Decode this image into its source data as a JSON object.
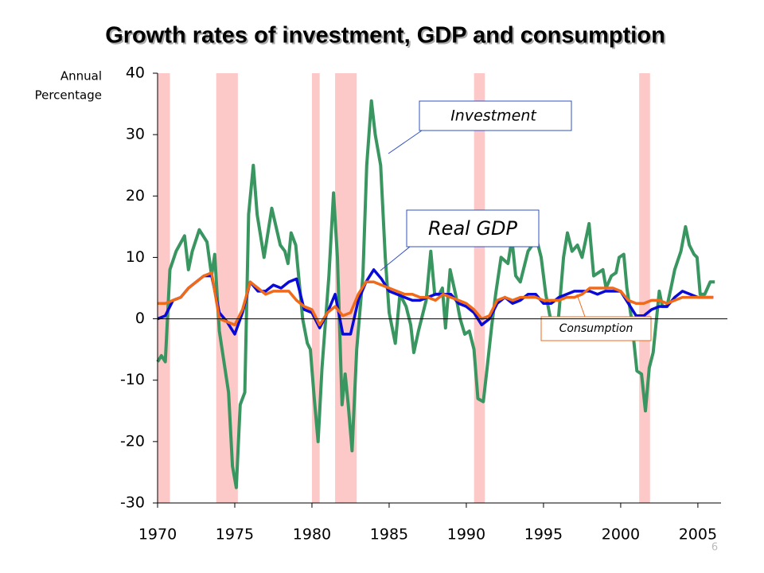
{
  "chart_data": {
    "type": "line",
    "title": "Growth rates of investment, GDP and consumption",
    "y_label": [
      "Annual",
      "Percentage"
    ],
    "xlim": [
      1970,
      2006.5
    ],
    "xticks": [
      1970,
      1975,
      1980,
      1985,
      1990,
      1995,
      2000,
      2005
    ],
    "ylim": [
      -30,
      40
    ],
    "yticks": [
      -30,
      -20,
      -10,
      0,
      10,
      20,
      30,
      40
    ],
    "shaded_periods": [
      [
        1969.9,
        1970.8
      ],
      [
        1973.8,
        1975.2
      ],
      [
        1980.0,
        1980.5
      ],
      [
        1981.5,
        1982.9
      ],
      [
        1990.5,
        1991.2
      ],
      [
        2001.2,
        2001.9
      ]
    ],
    "shade_color": "#fcc8c8",
    "series": [
      {
        "name": "Investment",
        "color": "#3a9660",
        "x": [
          1970,
          1970.25,
          1970.5,
          1970.8,
          1971.2,
          1971.75,
          1972,
          1972.25,
          1972.7,
          1973.2,
          1973.5,
          1973.7,
          1974,
          1974.3,
          1974.6,
          1974.85,
          1975.1,
          1975.35,
          1975.65,
          1975.9,
          1976.2,
          1976.45,
          1976.9,
          1977.4,
          1977.95,
          1978.25,
          1978.45,
          1978.65,
          1978.95,
          1979.4,
          1979.7,
          1979.9,
          1980.15,
          1980.4,
          1980.65,
          1981.1,
          1981.4,
          1981.65,
          1981.95,
          1982.15,
          1982.35,
          1982.6,
          1982.9,
          1983.3,
          1983.55,
          1983.85,
          1984.1,
          1984.45,
          1984.75,
          1985,
          1985.4,
          1985.7,
          1986.1,
          1986.4,
          1986.6,
          1986.9,
          1987.4,
          1987.7,
          1987.95,
          1988.25,
          1988.45,
          1988.65,
          1988.95,
          1989.3,
          1989.6,
          1989.9,
          1990.2,
          1990.5,
          1990.75,
          1991.1,
          1991.35,
          1991.65,
          1991.9,
          1992.25,
          1992.7,
          1992.95,
          1993.2,
          1993.5,
          1994,
          1994.55,
          1994.85,
          1995.15,
          1995.45,
          1995.9,
          1996.3,
          1996.55,
          1996.85,
          1997.2,
          1997.5,
          1997.95,
          1998.25,
          1998.55,
          1998.85,
          1999.05,
          1999.4,
          1999.7,
          1999.9,
          2000.2,
          2000.4,
          2000.7,
          2001.05,
          2001.35,
          2001.6,
          2001.85,
          2002.1,
          2002.5,
          2002.7,
          2003,
          2003.3,
          2003.5,
          2003.9,
          2004.2,
          2004.45,
          2004.75,
          2004.95,
          2005.15,
          2005.45,
          2005.8,
          2006.1
        ],
        "values": [
          -7,
          -6,
          -7,
          8,
          11,
          13.5,
          8,
          11,
          14.5,
          12.5,
          7,
          10.5,
          -2,
          -7,
          -12,
          -24,
          -27.5,
          -14,
          -12,
          17,
          25,
          17,
          10,
          18,
          12,
          11,
          9,
          14,
          12,
          0,
          -4,
          -5,
          -13,
          -20,
          -8,
          7,
          20.5,
          10,
          -14,
          -9,
          -14,
          -21.5,
          -5,
          7,
          25,
          35.5,
          30,
          25,
          10,
          1,
          -4,
          4,
          2,
          -1,
          -5.5,
          -2,
          3,
          11,
          4,
          4,
          5,
          -1.5,
          8,
          4,
          0,
          -2.5,
          -2,
          -5,
          -13,
          -13.5,
          -8,
          -1,
          4,
          10,
          9,
          13,
          7,
          6,
          11,
          13,
          10,
          4,
          0,
          -2,
          10,
          14,
          11,
          12,
          10,
          15.5,
          7,
          7.5,
          8,
          5,
          7,
          7.5,
          10,
          10.5,
          5,
          0,
          -8.5,
          -9,
          -15,
          -8,
          -5.5,
          4.5,
          2,
          2,
          5.5,
          8,
          11,
          15,
          12,
          10.5,
          10,
          4,
          4,
          6,
          6
        ]
      },
      {
        "name": "Real GDP",
        "color": "#0a0ad8",
        "x": [
          1970,
          1970.5,
          1971,
          1971.5,
          1972,
          1972.5,
          1973,
          1973.5,
          1974,
          1974.5,
          1975,
          1975.5,
          1976,
          1976.5,
          1977,
          1977.5,
          1978,
          1978.5,
          1979,
          1979.5,
          1980,
          1980.5,
          1981,
          1981.5,
          1982,
          1982.5,
          1983,
          1983.5,
          1984,
          1984.5,
          1985,
          1985.5,
          1986,
          1986.5,
          1987,
          1987.5,
          1988,
          1988.5,
          1989,
          1989.5,
          1990,
          1990.5,
          1991,
          1991.5,
          1992,
          1992.5,
          1993,
          1993.5,
          1994,
          1994.5,
          1995,
          1995.5,
          1996,
          1996.5,
          1997,
          1997.5,
          1998,
          1998.5,
          1999,
          1999.5,
          2000,
          2000.5,
          2001,
          2001.5,
          2002,
          2002.5,
          2003,
          2003.5,
          2004,
          2004.5,
          2005,
          2005.5,
          2006
        ],
        "values": [
          0,
          0.5,
          3,
          3.5,
          5,
          6,
          7,
          7,
          1,
          -0.5,
          -2.5,
          1,
          6,
          4.5,
          4.5,
          5.5,
          5,
          6,
          6.5,
          1.5,
          1,
          -1.5,
          1,
          4,
          -2.5,
          -2.5,
          3,
          6,
          8,
          6.5,
          4.5,
          4,
          3.5,
          3,
          3,
          3.5,
          4,
          4,
          4,
          2.5,
          2,
          1,
          -1,
          0,
          2.5,
          3.5,
          2.5,
          3,
          4,
          4,
          2.5,
          2.5,
          3.5,
          4,
          4.5,
          4.5,
          4.5,
          4,
          4.5,
          4.5,
          4.5,
          2.5,
          0.5,
          0.5,
          1.5,
          2,
          2,
          3.5,
          4.5,
          4,
          3.5,
          3.5,
          3.5
        ]
      },
      {
        "name": "Consumption",
        "color": "#f06a1a",
        "x": [
          1970,
          1970.5,
          1971,
          1971.5,
          1972,
          1972.5,
          1973,
          1973.5,
          1974,
          1974.5,
          1975,
          1975.5,
          1976,
          1976.5,
          1977,
          1977.5,
          1978,
          1978.5,
          1979,
          1979.5,
          1980,
          1980.5,
          1981,
          1981.5,
          1982,
          1982.5,
          1983,
          1983.5,
          1984,
          1984.5,
          1985,
          1985.5,
          1986,
          1986.5,
          1987,
          1987.5,
          1988,
          1988.5,
          1989,
          1989.5,
          1990,
          1990.5,
          1991,
          1991.5,
          1992,
          1992.5,
          1993,
          1993.5,
          1994,
          1994.5,
          1995,
          1995.5,
          1996,
          1996.5,
          1997,
          1997.5,
          1998,
          1998.5,
          1999,
          1999.5,
          2000,
          2000.5,
          2001,
          2001.5,
          2002,
          2002.5,
          2003,
          2003.5,
          2004,
          2004.5,
          2005,
          2005.5,
          2006
        ],
        "values": [
          2.5,
          2.5,
          3,
          3.5,
          5,
          6,
          7,
          7.5,
          0,
          -0.5,
          -1,
          1.5,
          6,
          5,
          4,
          4.5,
          4.5,
          4.5,
          3,
          2,
          1.5,
          -1,
          1,
          2,
          0.5,
          1,
          4,
          6,
          6,
          5.5,
          5,
          4.5,
          4,
          4,
          3.5,
          3.5,
          3,
          4,
          3.5,
          3,
          2.5,
          1.5,
          0,
          0.5,
          3,
          3.5,
          3,
          3.5,
          3.5,
          3.5,
          3,
          3,
          3,
          3.5,
          3.5,
          4,
          5,
          5,
          5,
          5,
          4.5,
          3,
          2.5,
          2.5,
          3,
          3,
          2.5,
          3,
          3.5,
          3.5,
          3.5,
          3.5,
          3.5
        ]
      }
    ],
    "page_number": "6"
  }
}
